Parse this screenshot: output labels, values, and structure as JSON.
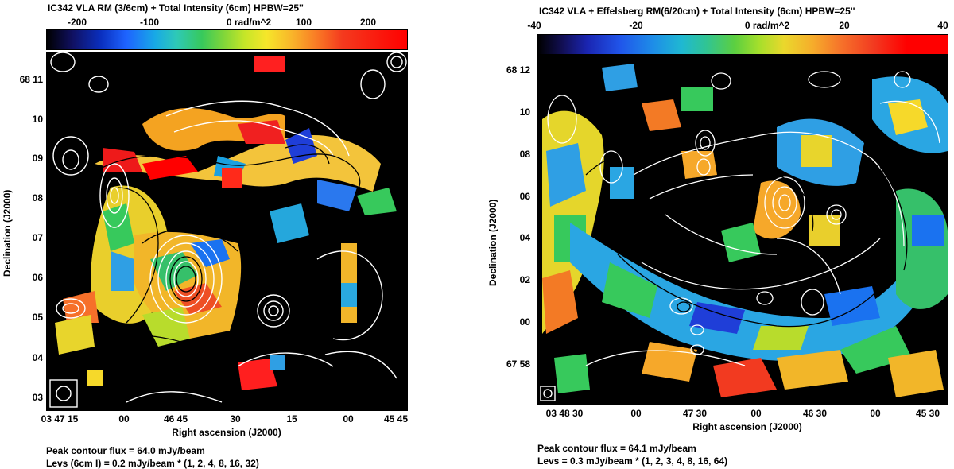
{
  "left_panel": {
    "title": "IC342   VLA   RM (3/6cm) + Total Intensity (6cm)  HPBW=25''",
    "colorbar_labels": [
      "-200",
      "-100",
      "0 rad/m^2",
      "100",
      "200"
    ],
    "dec_ticks": [
      "68 11",
      "10",
      "09",
      "08",
      "07",
      "06",
      "05",
      "04",
      "03"
    ],
    "ra_ticks": [
      "03 47 15",
      "00",
      "46 45",
      "30",
      "15",
      "00",
      "45 45"
    ],
    "xlabel": "Right ascension (J2000)",
    "ylabel": "Declination (J2000)",
    "peak": "Peak contour flux =  64.0 mJy/beam",
    "levels": "Levs (6cm I) = 0.2 mJy/beam * (1, 2, 4, 8, 16, 32)"
  },
  "right_panel": {
    "title": "IC342   VLA + Effelsberg   RM(6/20cm) + Total Intensity (6cm)   HPBW=25''",
    "colorbar_labels": [
      "-40",
      "-20",
      "0 rad/m^2",
      "20",
      "40"
    ],
    "dec_ticks": [
      "68 12",
      "10",
      "08",
      "06",
      "04",
      "02",
      "00",
      "67 58"
    ],
    "ra_ticks": [
      "03 48 30",
      "00",
      "47 30",
      "00",
      "46 30",
      "00",
      "45 30"
    ],
    "xlabel": "Right ascension (J2000)",
    "ylabel": "Declination (J2000)",
    "peak": "Peak contour flux =  64.1 mJy/beam",
    "levels": "Levs = 0.3 mJy/beam * (1, 2, 3, 4, 8, 16, 64)"
  },
  "colors": {
    "background": "#ffffff",
    "map_background": "#000000"
  }
}
